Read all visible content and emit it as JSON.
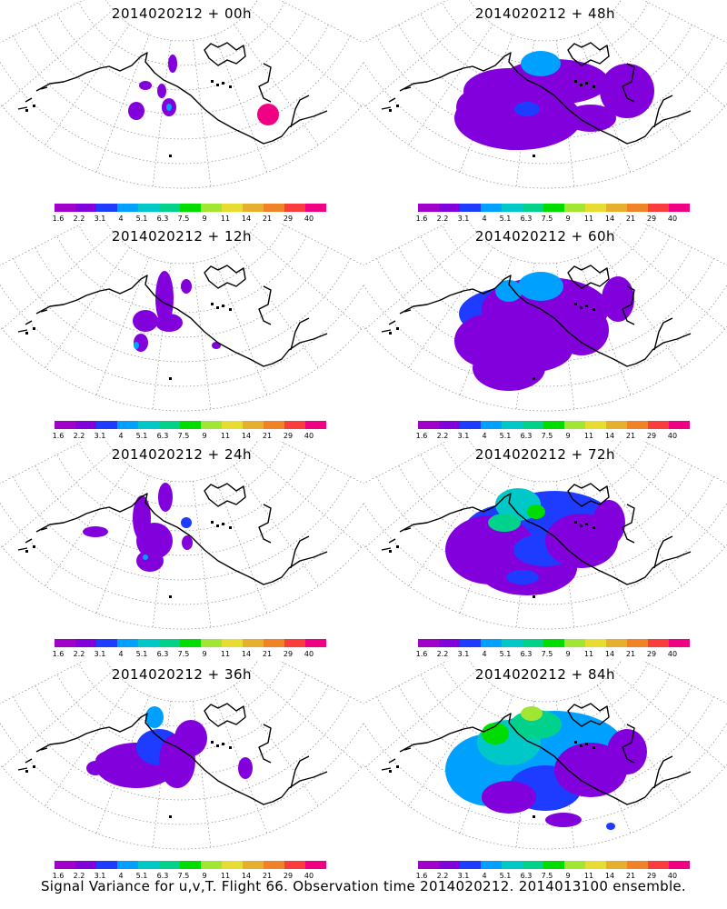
{
  "panels": [
    {
      "title": "2014020212 + 00h"
    },
    {
      "title": "2014020212 + 48h"
    },
    {
      "title": "2014020212 + 12h"
    },
    {
      "title": "2014020212 + 60h"
    },
    {
      "title": "2014020212 + 24h"
    },
    {
      "title": "2014020212 + 72h"
    },
    {
      "title": "2014020212 + 36h"
    },
    {
      "title": "2014020212 + 84h"
    }
  ],
  "colorbar": {
    "colors": [
      "#a000c8",
      "#8200dc",
      "#1e3cff",
      "#00a0ff",
      "#00c8c8",
      "#00d28c",
      "#00dc00",
      "#a0e632",
      "#e6dc32",
      "#e6af2d",
      "#f08228",
      "#fa3c3c",
      "#f00082"
    ],
    "labels": [
      "1.6",
      "2.2",
      "3.1",
      "4",
      "5.1",
      "6.3",
      "7.5",
      "9",
      "11",
      "14",
      "21",
      "29",
      "40"
    ]
  },
  "caption": "Signal Variance for u,v,T. Flight 66. Observation time 2014020212. 2014013100 ensemble."
}
